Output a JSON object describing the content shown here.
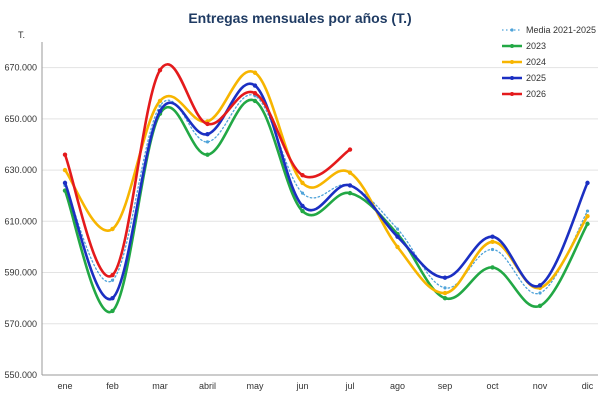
{
  "chart_data": {
    "type": "line",
    "title": "Entregas mensuales por años (T.)",
    "ylabel": "T.",
    "xlabel": "",
    "ylim": [
      550000,
      680000
    ],
    "yticks": [
      550000,
      570000,
      590000,
      610000,
      630000,
      650000,
      670000
    ],
    "ytick_labels": [
      "550.000",
      "570.000",
      "590.000",
      "610.000",
      "630.000",
      "650.000",
      "670.000"
    ],
    "categories": [
      "ene",
      "feb",
      "mar",
      "abril",
      "may",
      "jun",
      "jul",
      "ago",
      "sep",
      "oct",
      "nov",
      "dic"
    ],
    "grid": "horizontal",
    "legend_position": "top-right",
    "series": [
      {
        "name": "Media 2021-2025",
        "color": "#4fa3d9",
        "style": "dotted",
        "values": [
          624000,
          587000,
          655000,
          641000,
          659000,
          621000,
          624000,
          607000,
          584000,
          599000,
          582000,
          614000
        ]
      },
      {
        "name": "2023",
        "color": "#22a845",
        "style": "solid",
        "values": [
          622000,
          575000,
          652000,
          636000,
          657000,
          614000,
          621000,
          605000,
          580000,
          592000,
          577000,
          609000
        ]
      },
      {
        "name": "2024",
        "color": "#f7b500",
        "style": "solid",
        "values": [
          630000,
          607000,
          657000,
          649000,
          668000,
          625000,
          629000,
          600000,
          582000,
          602000,
          584000,
          612000
        ]
      },
      {
        "name": "2025",
        "color": "#1b2fc2",
        "style": "solid",
        "values": [
          625000,
          580000,
          653000,
          644000,
          663000,
          616000,
          624000,
          604000,
          588000,
          604000,
          585000,
          625000
        ]
      },
      {
        "name": "2026",
        "color": "#e41a1c",
        "style": "solid",
        "values": [
          636000,
          589000,
          669000,
          648000,
          660000,
          628000,
          638000,
          null,
          null,
          null,
          null,
          null
        ]
      }
    ]
  }
}
